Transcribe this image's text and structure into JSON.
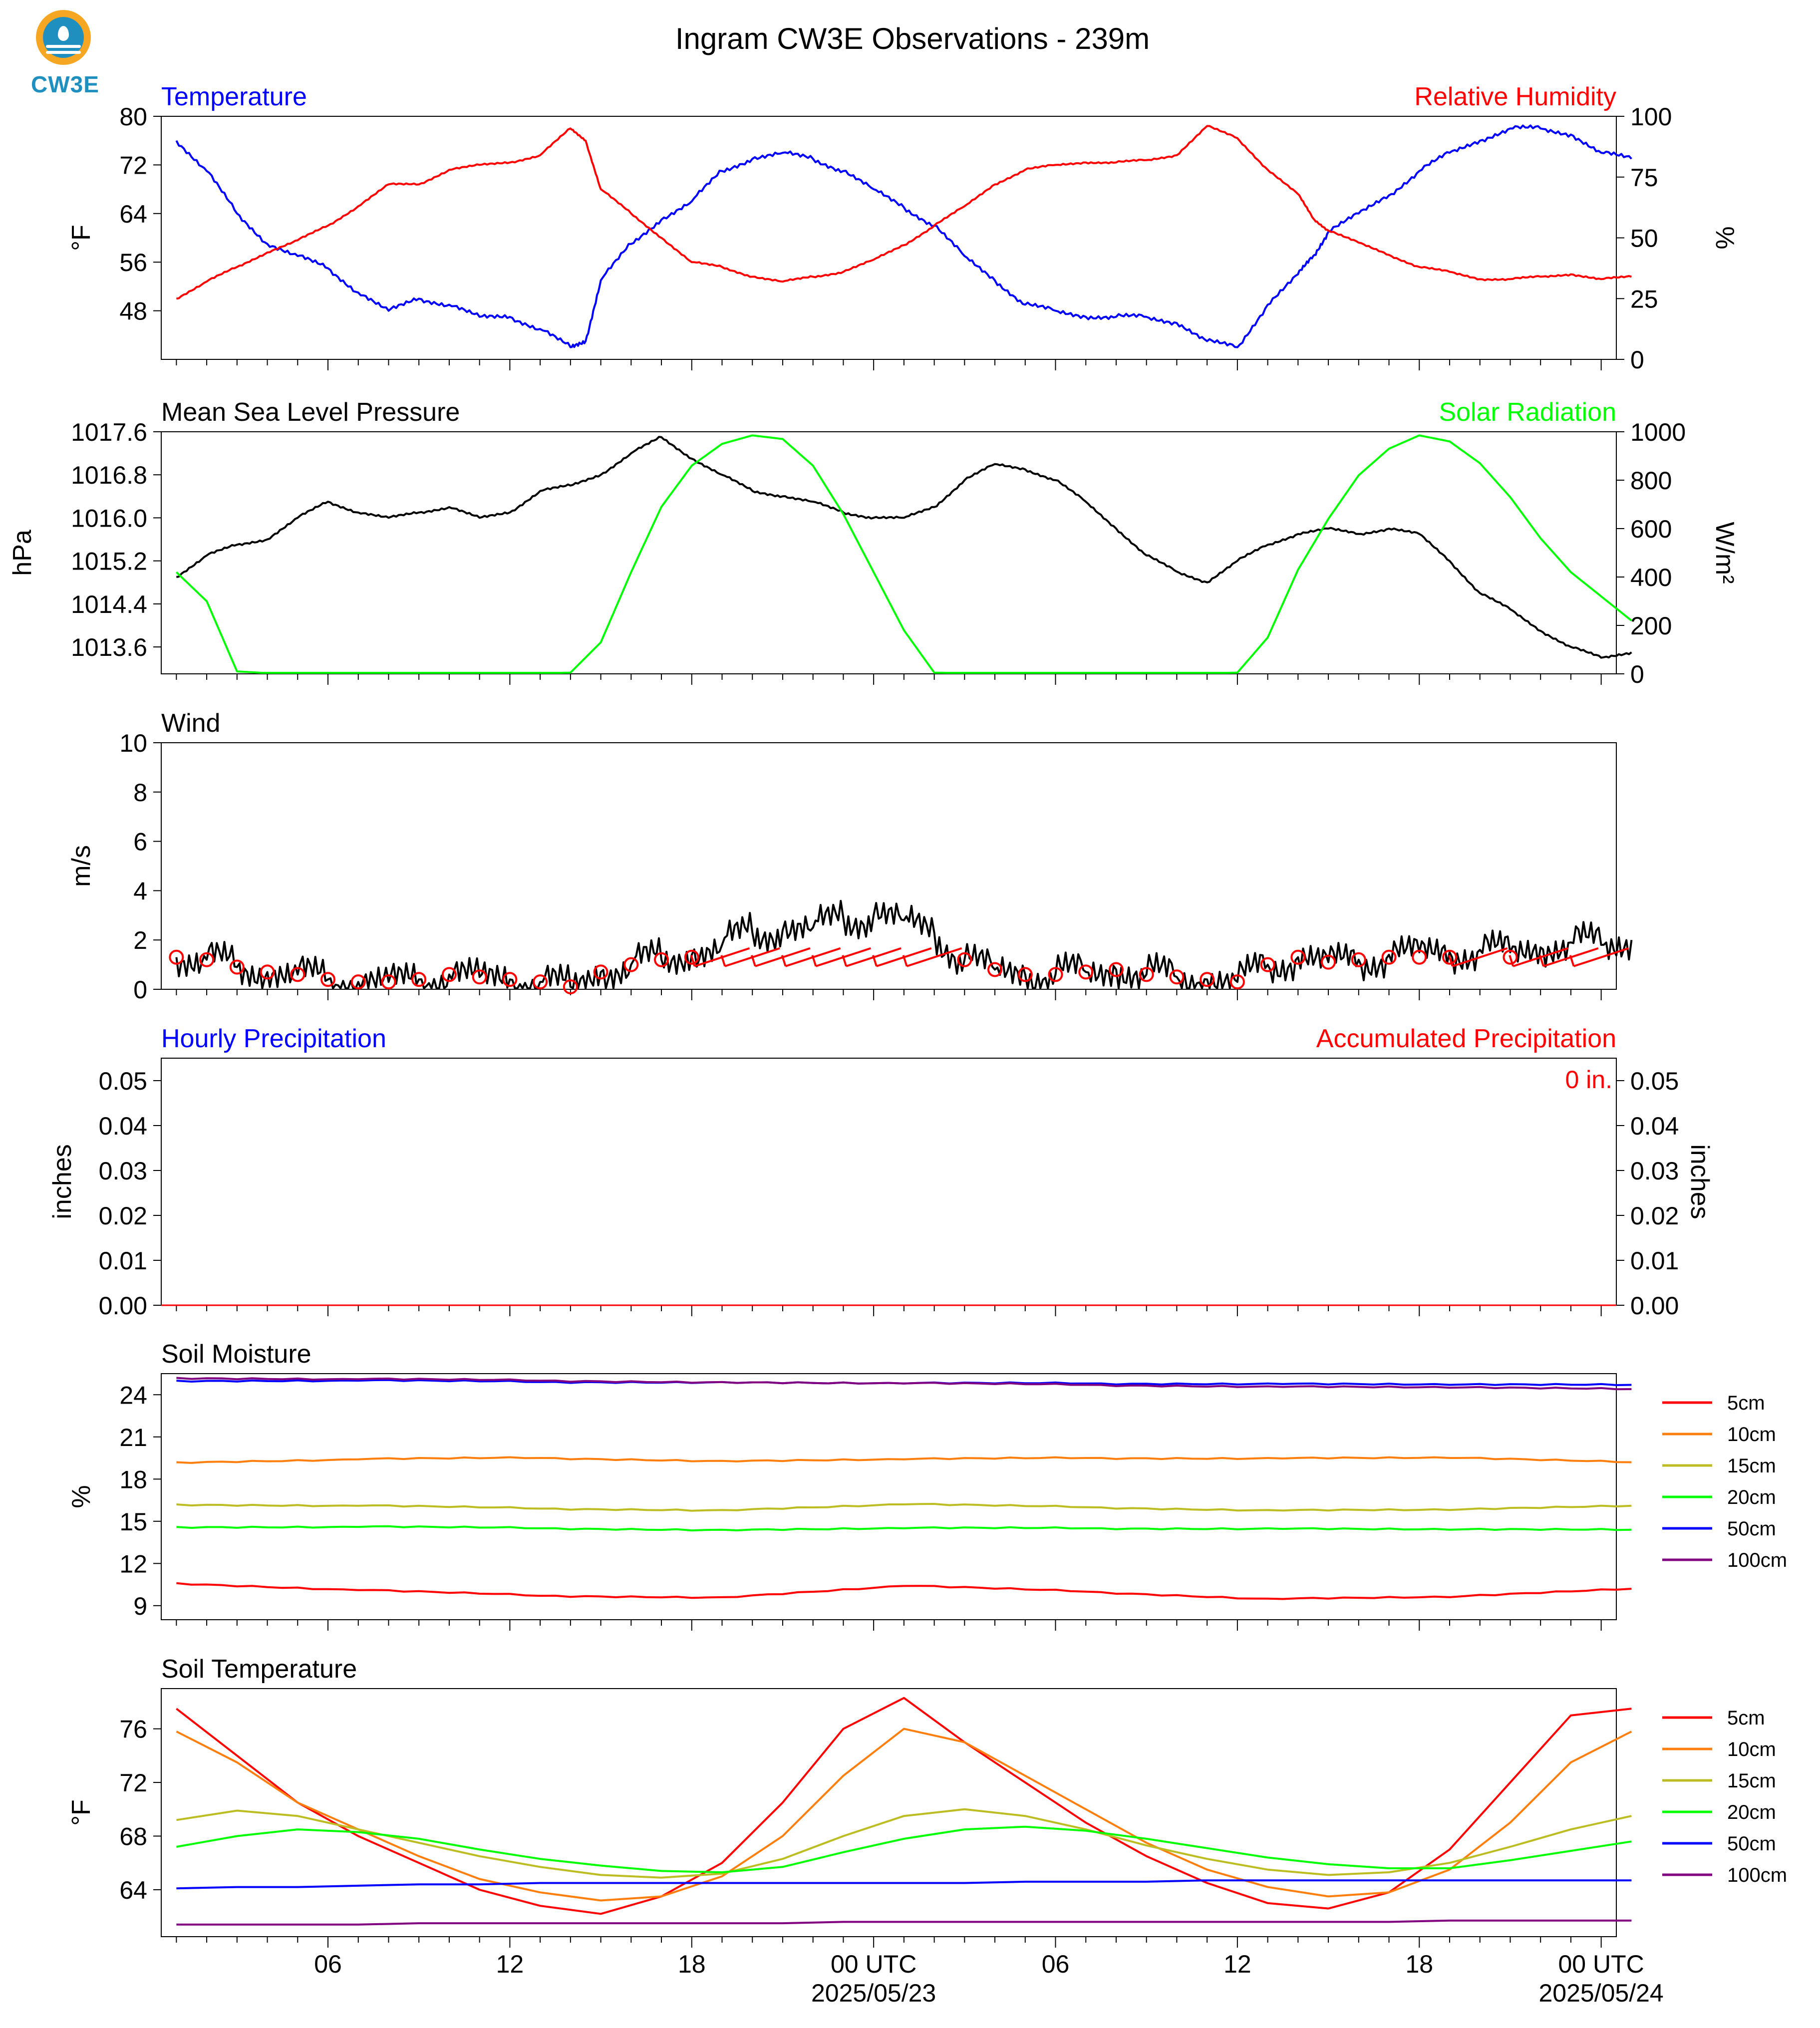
{
  "figure": {
    "title": "Ingram CW3E Observations - 239m",
    "logo_text": "CW3E",
    "x_ticks": [
      "06",
      "12",
      "18",
      "00 UTC",
      "06",
      "12",
      "18",
      "00 UTC"
    ],
    "x_dates": [
      "2025/05/23",
      "2025/05/24"
    ]
  },
  "colors": {
    "blue": "#0000ff",
    "red": "#ff0000",
    "green": "#00ff00",
    "black": "#000000",
    "orange": "#ff7f0e",
    "olive": "#bcbd22",
    "purple": "#800080",
    "logo_blue": "#1f8fc0",
    "logo_orange": "#f5a623"
  },
  "chart_data": [
    {
      "type": "line",
      "title_left": "Temperature",
      "title_right": "Relative Humidity",
      "ylabel_left": "°F",
      "ylabel_right": "%",
      "ylim_left": [
        40,
        80
      ],
      "yticks_left": [
        48,
        56,
        64,
        72,
        80
      ],
      "ylim_right": [
        0,
        100
      ],
      "yticks_right": [
        0,
        25,
        50,
        75,
        100
      ],
      "x_hours": [
        1,
        2,
        3,
        4,
        5,
        6,
        7,
        8,
        9,
        10,
        11,
        12,
        13,
        14,
        14.5,
        15,
        16,
        17,
        18,
        19,
        20,
        21,
        22,
        23,
        24,
        25,
        26,
        27,
        28,
        29,
        30,
        31,
        32,
        33,
        34,
        35,
        36,
        37,
        38,
        38.5,
        39,
        40,
        41,
        42,
        43,
        44,
        45,
        46,
        47,
        48,
        49
      ],
      "series": [
        {
          "name": "Temperature",
          "axis": "left",
          "color": "blue",
          "values": [
            76,
            71,
            64,
            59,
            57,
            55,
            51,
            48,
            50,
            49,
            47,
            47,
            45,
            42,
            43,
            53,
            59,
            63,
            66,
            71,
            73,
            74,
            73,
            71,
            68,
            65,
            62,
            57,
            53,
            49,
            48,
            47,
            47,
            47,
            46,
            43,
            42,
            49,
            54,
            57,
            61,
            64,
            67,
            71,
            74,
            76,
            78,
            78,
            77,
            74,
            73
          ]
        },
        {
          "name": "Relative Humidity",
          "axis": "right",
          "color": "red",
          "values": [
            25,
            32,
            38,
            44,
            49,
            55,
            63,
            72,
            72,
            78,
            80,
            81,
            84,
            95,
            90,
            70,
            60,
            50,
            40,
            38,
            34,
            32,
            34,
            36,
            41,
            47,
            55,
            63,
            72,
            78,
            80,
            81,
            81,
            82,
            84,
            96,
            91,
            78,
            68,
            58,
            53,
            48,
            43,
            38,
            36,
            33,
            33,
            34,
            35,
            33,
            34
          ]
        }
      ]
    },
    {
      "type": "line",
      "title_left": "Mean Sea Level Pressure",
      "title_right": "Solar Radiation",
      "ylabel_left": "hPa",
      "ylabel_right": "W/m²",
      "ylim_left": [
        1013.1,
        1017.6
      ],
      "yticks_left": [
        1013.6,
        1014.4,
        1015.2,
        1016.0,
        1016.8,
        1017.6
      ],
      "ylim_right": [
        0,
        1000
      ],
      "yticks_right": [
        0,
        200,
        400,
        600,
        800,
        1000
      ],
      "x_hours": [
        1,
        2,
        3,
        4,
        5,
        6,
        7,
        8,
        9,
        10,
        11,
        12,
        13,
        14,
        15,
        16,
        17,
        18,
        19,
        20,
        21,
        22,
        23,
        24,
        25,
        26,
        27,
        28,
        29,
        30,
        31,
        32,
        33,
        34,
        35,
        36,
        37,
        38,
        39,
        40,
        41,
        42,
        43,
        44,
        45,
        46,
        47,
        48,
        49
      ],
      "series": [
        {
          "name": "Mean Sea Level Pressure",
          "axis": "left",
          "color": "black",
          "values": [
            1014.9,
            1015.3,
            1015.5,
            1015.6,
            1016.0,
            1016.3,
            1016.1,
            1016.0,
            1016.1,
            1016.2,
            1016.0,
            1016.1,
            1016.5,
            1016.6,
            1016.8,
            1017.2,
            1017.5,
            1017.1,
            1016.8,
            1016.5,
            1016.4,
            1016.3,
            1016.1,
            1016.0,
            1016.0,
            1016.2,
            1016.7,
            1017.0,
            1016.9,
            1016.7,
            1016.3,
            1015.8,
            1015.3,
            1015.0,
            1014.8,
            1015.2,
            1015.5,
            1015.7,
            1015.8,
            1015.7,
            1015.8,
            1015.7,
            1015.2,
            1014.6,
            1014.3,
            1013.9,
            1013.6,
            1013.4,
            1013.5
          ]
        },
        {
          "name": "Solar Radiation",
          "axis": "right",
          "color": "green",
          "values": [
            420,
            300,
            10,
            3,
            2,
            2,
            2,
            2,
            2,
            2,
            2,
            2,
            2,
            5,
            130,
            420,
            690,
            860,
            950,
            985,
            970,
            860,
            660,
            420,
            180,
            5,
            3,
            2,
            2,
            2,
            2,
            2,
            2,
            2,
            2,
            5,
            150,
            430,
            640,
            820,
            930,
            985,
            960,
            870,
            730,
            560,
            420,
            320,
            220
          ]
        }
      ]
    },
    {
      "type": "line",
      "title_left": "Wind",
      "ylabel_left": "m/s",
      "ylim_left": [
        0,
        10
      ],
      "yticks_left": [
        0,
        2,
        4,
        6,
        8,
        10
      ],
      "x_hours": [
        1,
        2,
        3,
        4,
        5,
        6,
        7,
        8,
        9,
        10,
        11,
        12,
        13,
        14,
        15,
        16,
        17,
        18,
        19,
        20,
        21,
        22,
        23,
        24,
        25,
        26,
        27,
        28,
        29,
        30,
        31,
        32,
        33,
        34,
        35,
        36,
        37,
        38,
        39,
        40,
        41,
        42,
        43,
        44,
        45,
        46,
        47,
        48,
        49
      ],
      "series": [
        {
          "name": "Wind speed",
          "axis": "left",
          "color": "black",
          "values": [
            1.3,
            1.2,
            0.9,
            0.7,
            0.6,
            0.4,
            0.3,
            0.3,
            0.4,
            0.6,
            0.5,
            0.4,
            0.3,
            0.1,
            0.7,
            1.0,
            1.2,
            1.4,
            1.8,
            2.3,
            2.4,
            2.5,
            2.9,
            3.0,
            2.8,
            2.3,
            1.2,
            0.8,
            0.6,
            0.6,
            0.7,
            0.8,
            0.6,
            0.5,
            0.4,
            0.3,
            1.0,
            1.3,
            1.1,
            1.2,
            1.4,
            1.5,
            1.5,
            1.6,
            1.5,
            1.7,
            1.9,
            1.8,
            2.0
          ]
        }
      ]
    },
    {
      "type": "bar",
      "title_left": "Hourly Precipitation",
      "title_right": "Accumulated Precipitation",
      "annotation": "0 in.",
      "ylabel_left": "inches",
      "ylabel_right": "inches",
      "ylim_left": [
        0,
        0.055
      ],
      "yticks_left": [
        "0.00",
        "0.01",
        "0.02",
        "0.03",
        "0.04",
        "0.05"
      ],
      "yticks_right": [
        "0.00",
        "0.01",
        "0.02",
        "0.03",
        "0.04",
        "0.05"
      ],
      "values": [
        0
      ]
    },
    {
      "type": "line",
      "title_left": "Soil Moisture",
      "ylabel_left": "%",
      "ylim_left": [
        8,
        25.5
      ],
      "yticks_left": [
        9,
        12,
        15,
        18,
        21,
        24
      ],
      "x_hours": [
        1,
        7,
        13,
        19,
        25,
        31,
        37,
        43,
        49
      ],
      "legend": [
        "5cm",
        "10cm",
        "15cm",
        "20cm",
        "50cm",
        "100cm"
      ],
      "series": [
        {
          "name": "5cm",
          "color": "red",
          "values": [
            10.6,
            10.1,
            9.7,
            9.6,
            10.4,
            10.0,
            9.5,
            9.6,
            10.2
          ]
        },
        {
          "name": "10cm",
          "color": "orange",
          "values": [
            19.2,
            19.4,
            19.5,
            19.3,
            19.4,
            19.5,
            19.5,
            19.5,
            19.2
          ]
        },
        {
          "name": "15cm",
          "color": "olive",
          "values": [
            16.2,
            16.1,
            15.9,
            15.8,
            16.2,
            16.0,
            15.8,
            15.8,
            16.1
          ]
        },
        {
          "name": "20cm",
          "color": "green",
          "values": [
            14.6,
            14.6,
            14.5,
            14.4,
            14.5,
            14.5,
            14.5,
            14.4,
            14.4
          ]
        },
        {
          "name": "50cm",
          "color": "blue",
          "values": [
            25.0,
            25.0,
            24.9,
            24.9,
            24.8,
            24.8,
            24.8,
            24.7,
            24.7
          ]
        },
        {
          "name": "100cm",
          "color": "purple",
          "values": [
            25.2,
            25.1,
            25.0,
            24.9,
            24.8,
            24.7,
            24.6,
            24.5,
            24.4
          ]
        }
      ]
    },
    {
      "type": "line",
      "title_left": "Soil Temperature",
      "ylabel_left": "°F",
      "ylim_left": [
        60.5,
        79
      ],
      "yticks_left": [
        64,
        68,
        72,
        76
      ],
      "x_hours": [
        1,
        3,
        5,
        7,
        9,
        11,
        13,
        15,
        17,
        19,
        21,
        23,
        25,
        27,
        29,
        31,
        33,
        35,
        37,
        39,
        41,
        43,
        45,
        47,
        49
      ],
      "legend": [
        "5cm",
        "10cm",
        "15cm",
        "20cm",
        "50cm",
        "100cm"
      ],
      "series": [
        {
          "name": "5cm",
          "color": "red",
          "values": [
            77.5,
            74,
            70.5,
            68,
            66,
            64,
            62.8,
            62.2,
            63.5,
            66,
            70.5,
            76,
            78.3,
            75,
            72,
            69,
            66.5,
            64.5,
            63,
            62.6,
            63.8,
            67,
            72,
            77,
            77.5
          ]
        },
        {
          "name": "10cm",
          "color": "orange",
          "values": [
            75.8,
            73.5,
            70.5,
            68.5,
            66.5,
            64.8,
            63.8,
            63.2,
            63.5,
            65,
            68,
            72.5,
            76,
            75,
            72.5,
            70,
            67.5,
            65.5,
            64.2,
            63.5,
            63.8,
            65.5,
            69,
            73.5,
            75.8
          ]
        },
        {
          "name": "15cm",
          "color": "olive",
          "values": [
            69.2,
            69.9,
            69.5,
            68.5,
            67.5,
            66.5,
            65.7,
            65.1,
            64.9,
            65.2,
            66.3,
            68,
            69.5,
            70,
            69.5,
            68.5,
            67.3,
            66.3,
            65.5,
            65.1,
            65.3,
            66,
            67.2,
            68.5,
            69.5
          ]
        },
        {
          "name": "20cm",
          "color": "green",
          "values": [
            67.2,
            68,
            68.5,
            68.3,
            67.8,
            67,
            66.3,
            65.8,
            65.4,
            65.3,
            65.7,
            66.8,
            67.8,
            68.5,
            68.7,
            68.4,
            67.8,
            67.1,
            66.4,
            65.9,
            65.6,
            65.6,
            66.2,
            66.9,
            67.6
          ]
        },
        {
          "name": "50cm",
          "color": "blue",
          "values": [
            64.1,
            64.2,
            64.2,
            64.3,
            64.4,
            64.4,
            64.5,
            64.5,
            64.5,
            64.5,
            64.5,
            64.5,
            64.5,
            64.5,
            64.6,
            64.6,
            64.6,
            64.7,
            64.7,
            64.7,
            64.7,
            64.7,
            64.7,
            64.7,
            64.7
          ]
        },
        {
          "name": "100cm",
          "color": "purple",
          "values": [
            61.4,
            61.4,
            61.4,
            61.4,
            61.5,
            61.5,
            61.5,
            61.5,
            61.5,
            61.5,
            61.5,
            61.6,
            61.6,
            61.6,
            61.6,
            61.6,
            61.6,
            61.6,
            61.6,
            61.6,
            61.6,
            61.7,
            61.7,
            61.7,
            61.7
          ]
        }
      ]
    }
  ]
}
